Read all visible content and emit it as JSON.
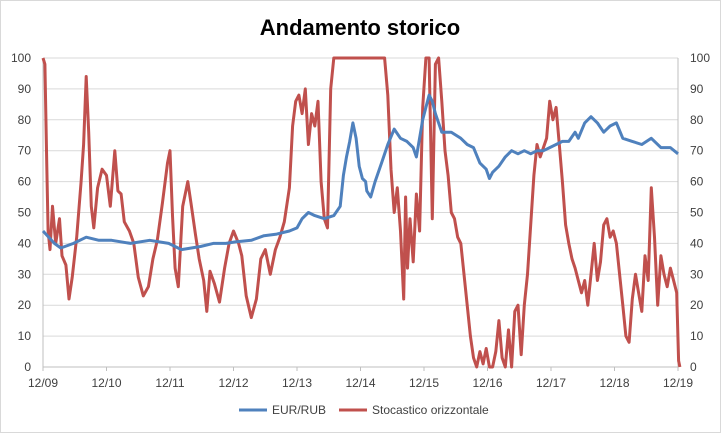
{
  "chart_data": {
    "type": "line",
    "title": "Andamento storico",
    "x_ticks": [
      "12/09",
      "12/10",
      "12/11",
      "12/12",
      "12/13",
      "12/14",
      "12/15",
      "12/16",
      "12/17",
      "12/18",
      "12/19"
    ],
    "y_left": {
      "min": 0,
      "max": 100,
      "step": 10
    },
    "y_right": {
      "min": 0,
      "max": 100,
      "step": 10
    },
    "y_ticks": [
      "0",
      "10",
      "20",
      "30",
      "40",
      "50",
      "60",
      "70",
      "80",
      "90",
      "100"
    ],
    "grid": "horizontal",
    "legend_position": "bottom",
    "series": [
      {
        "name": "EUR/RUB",
        "color": "#4f81bd",
        "axis": "left",
        "points": [
          [
            2009.92,
            44
          ],
          [
            2010.1,
            40
          ],
          [
            2010.2,
            38.5
          ],
          [
            2010.4,
            40
          ],
          [
            2010.6,
            42
          ],
          [
            2010.8,
            41
          ],
          [
            2011.0,
            41
          ],
          [
            2011.3,
            40
          ],
          [
            2011.6,
            41
          ],
          [
            2011.9,
            40
          ],
          [
            2012.1,
            38
          ],
          [
            2012.4,
            39
          ],
          [
            2012.6,
            40
          ],
          [
            2012.8,
            40
          ],
          [
            2012.95,
            40.5
          ],
          [
            2013.2,
            41
          ],
          [
            2013.4,
            42.5
          ],
          [
            2013.6,
            43
          ],
          [
            2013.8,
            44
          ],
          [
            2013.92,
            45
          ],
          [
            2014.0,
            48
          ],
          [
            2014.1,
            50
          ],
          [
            2014.2,
            49
          ],
          [
            2014.35,
            48
          ],
          [
            2014.5,
            49
          ],
          [
            2014.6,
            52
          ],
          [
            2014.65,
            62
          ],
          [
            2014.7,
            68
          ],
          [
            2014.75,
            73
          ],
          [
            2014.8,
            79
          ],
          [
            2014.85,
            74
          ],
          [
            2014.9,
            65
          ],
          [
            2014.95,
            61
          ],
          [
            2015.0,
            60
          ],
          [
            2015.02,
            57
          ],
          [
            2015.08,
            55
          ],
          [
            2015.15,
            60
          ],
          [
            2015.25,
            66
          ],
          [
            2015.35,
            72
          ],
          [
            2015.45,
            77
          ],
          [
            2015.55,
            74
          ],
          [
            2015.65,
            73
          ],
          [
            2015.75,
            71
          ],
          [
            2015.8,
            68
          ],
          [
            2015.9,
            80
          ],
          [
            2015.95,
            84
          ],
          [
            2016.0,
            88
          ],
          [
            2016.05,
            86
          ],
          [
            2016.1,
            82
          ],
          [
            2016.2,
            76
          ],
          [
            2016.35,
            76
          ],
          [
            2016.5,
            74
          ],
          [
            2016.6,
            72
          ],
          [
            2016.7,
            71
          ],
          [
            2016.8,
            66
          ],
          [
            2016.9,
            64
          ],
          [
            2016.95,
            61
          ],
          [
            2017.0,
            63
          ],
          [
            2017.1,
            65
          ],
          [
            2017.2,
            68
          ],
          [
            2017.3,
            70
          ],
          [
            2017.4,
            69
          ],
          [
            2017.5,
            70
          ],
          [
            2017.6,
            69
          ],
          [
            2017.7,
            70
          ],
          [
            2017.8,
            70
          ],
          [
            2017.9,
            71
          ],
          [
            2018.0,
            72
          ],
          [
            2018.1,
            73
          ],
          [
            2018.2,
            73
          ],
          [
            2018.3,
            76
          ],
          [
            2018.35,
            74
          ],
          [
            2018.45,
            79
          ],
          [
            2018.55,
            81
          ],
          [
            2018.65,
            79
          ],
          [
            2018.75,
            76
          ],
          [
            2018.85,
            78
          ],
          [
            2018.95,
            79
          ],
          [
            2019.05,
            74
          ],
          [
            2019.2,
            73
          ],
          [
            2019.35,
            72
          ],
          [
            2019.5,
            74
          ],
          [
            2019.65,
            71
          ],
          [
            2019.8,
            71
          ],
          [
            2019.92,
            69
          ]
        ]
      },
      {
        "name": "Stocastico orizzontale",
        "color": "#c0504d",
        "axis": "right",
        "points": [
          [
            2009.92,
            100
          ],
          [
            2009.95,
            98
          ],
          [
            2009.98,
            65
          ],
          [
            2010.0,
            44
          ],
          [
            2010.03,
            38
          ],
          [
            2010.07,
            52
          ],
          [
            2010.12,
            40
          ],
          [
            2010.18,
            48
          ],
          [
            2010.22,
            36
          ],
          [
            2010.28,
            33
          ],
          [
            2010.33,
            22
          ],
          [
            2010.38,
            29
          ],
          [
            2010.45,
            42
          ],
          [
            2010.52,
            60
          ],
          [
            2010.56,
            72
          ],
          [
            2010.6,
            94
          ],
          [
            2010.64,
            76
          ],
          [
            2010.68,
            52
          ],
          [
            2010.72,
            45
          ],
          [
            2010.78,
            58
          ],
          [
            2010.85,
            64
          ],
          [
            2010.92,
            62
          ],
          [
            2010.98,
            52
          ],
          [
            2011.05,
            70
          ],
          [
            2011.1,
            57
          ],
          [
            2011.15,
            56
          ],
          [
            2011.2,
            47
          ],
          [
            2011.28,
            44
          ],
          [
            2011.35,
            40
          ],
          [
            2011.42,
            29
          ],
          [
            2011.5,
            23
          ],
          [
            2011.58,
            26
          ],
          [
            2011.65,
            35
          ],
          [
            2011.72,
            41
          ],
          [
            2011.8,
            53
          ],
          [
            2011.88,
            66
          ],
          [
            2011.92,
            70
          ],
          [
            2011.96,
            49
          ],
          [
            2012.0,
            32
          ],
          [
            2012.05,
            26
          ],
          [
            2012.12,
            52
          ],
          [
            2012.2,
            60
          ],
          [
            2012.25,
            53
          ],
          [
            2012.32,
            43
          ],
          [
            2012.38,
            35
          ],
          [
            2012.45,
            28
          ],
          [
            2012.5,
            18
          ],
          [
            2012.55,
            31
          ],
          [
            2012.62,
            27
          ],
          [
            2012.7,
            21
          ],
          [
            2012.78,
            32
          ],
          [
            2012.85,
            40
          ],
          [
            2012.92,
            44
          ],
          [
            2013.0,
            40
          ],
          [
            2013.05,
            36
          ],
          [
            2013.12,
            23
          ],
          [
            2013.2,
            16
          ],
          [
            2013.28,
            22
          ],
          [
            2013.35,
            35
          ],
          [
            2013.42,
            38
          ],
          [
            2013.5,
            30
          ],
          [
            2013.58,
            38
          ],
          [
            2013.65,
            42
          ],
          [
            2013.72,
            47
          ],
          [
            2013.8,
            58
          ],
          [
            2013.85,
            78
          ],
          [
            2013.9,
            86
          ],
          [
            2013.95,
            88
          ],
          [
            2014.0,
            82
          ],
          [
            2014.05,
            90
          ],
          [
            2014.1,
            72
          ],
          [
            2014.15,
            82
          ],
          [
            2014.2,
            78
          ],
          [
            2014.25,
            86
          ],
          [
            2014.3,
            60
          ],
          [
            2014.35,
            48
          ],
          [
            2014.4,
            45
          ],
          [
            2014.45,
            90
          ],
          [
            2014.5,
            100
          ],
          [
            2014.95,
            100
          ],
          [
            2015.3,
            100
          ],
          [
            2015.35,
            88
          ],
          [
            2015.4,
            64
          ],
          [
            2015.45,
            50
          ],
          [
            2015.5,
            58
          ],
          [
            2015.55,
            44
          ],
          [
            2015.6,
            22
          ],
          [
            2015.63,
            55
          ],
          [
            2015.66,
            32
          ],
          [
            2015.7,
            48
          ],
          [
            2015.75,
            34
          ],
          [
            2015.8,
            56
          ],
          [
            2015.85,
            44
          ],
          [
            2015.9,
            84
          ],
          [
            2015.95,
            100
          ],
          [
            2016.0,
            100
          ],
          [
            2016.05,
            48
          ],
          [
            2016.1,
            98
          ],
          [
            2016.15,
            100
          ],
          [
            2016.2,
            86
          ],
          [
            2016.25,
            70
          ],
          [
            2016.3,
            62
          ],
          [
            2016.35,
            50
          ],
          [
            2016.4,
            48
          ],
          [
            2016.45,
            42
          ],
          [
            2016.5,
            40
          ],
          [
            2016.55,
            30
          ],
          [
            2016.6,
            20
          ],
          [
            2016.65,
            10
          ],
          [
            2016.7,
            3
          ],
          [
            2016.75,
            0
          ],
          [
            2016.8,
            5
          ],
          [
            2016.85,
            1
          ],
          [
            2016.9,
            6
          ],
          [
            2016.95,
            0
          ],
          [
            2017.0,
            0
          ],
          [
            2017.05,
            5
          ],
          [
            2017.1,
            15
          ],
          [
            2017.15,
            3
          ],
          [
            2017.2,
            0
          ],
          [
            2017.25,
            12
          ],
          [
            2017.3,
            0
          ],
          [
            2017.35,
            18
          ],
          [
            2017.4,
            20
          ],
          [
            2017.45,
            4
          ],
          [
            2017.5,
            20
          ],
          [
            2017.55,
            30
          ],
          [
            2017.6,
            46
          ],
          [
            2017.65,
            62
          ],
          [
            2017.7,
            72
          ],
          [
            2017.75,
            68
          ],
          [
            2017.8,
            71
          ],
          [
            2017.85,
            74
          ],
          [
            2017.9,
            86
          ],
          [
            2017.95,
            80
          ],
          [
            2018.0,
            84
          ],
          [
            2018.05,
            72
          ],
          [
            2018.1,
            60
          ],
          [
            2018.15,
            46
          ],
          [
            2018.2,
            40
          ],
          [
            2018.25,
            35
          ],
          [
            2018.3,
            32
          ],
          [
            2018.35,
            28
          ],
          [
            2018.4,
            24
          ],
          [
            2018.45,
            28
          ],
          [
            2018.5,
            20
          ],
          [
            2018.55,
            30
          ],
          [
            2018.6,
            40
          ],
          [
            2018.65,
            28
          ],
          [
            2018.7,
            34
          ],
          [
            2018.75,
            46
          ],
          [
            2018.8,
            48
          ],
          [
            2018.85,
            42
          ],
          [
            2018.9,
            44
          ],
          [
            2018.95,
            40
          ],
          [
            2019.0,
            30
          ],
          [
            2019.05,
            20
          ],
          [
            2019.1,
            10
          ],
          [
            2019.15,
            8
          ],
          [
            2019.2,
            22
          ],
          [
            2019.25,
            30
          ],
          [
            2019.3,
            24
          ],
          [
            2019.35,
            18
          ],
          [
            2019.4,
            36
          ],
          [
            2019.45,
            28
          ],
          [
            2019.5,
            58
          ],
          [
            2019.55,
            42
          ],
          [
            2019.6,
            20
          ],
          [
            2019.65,
            36
          ],
          [
            2019.7,
            30
          ],
          [
            2019.75,
            26
          ],
          [
            2019.8,
            32
          ],
          [
            2019.85,
            28
          ],
          [
            2019.9,
            24
          ],
          [
            2019.93,
            2
          ],
          [
            2019.95,
            0
          ]
        ]
      }
    ]
  }
}
